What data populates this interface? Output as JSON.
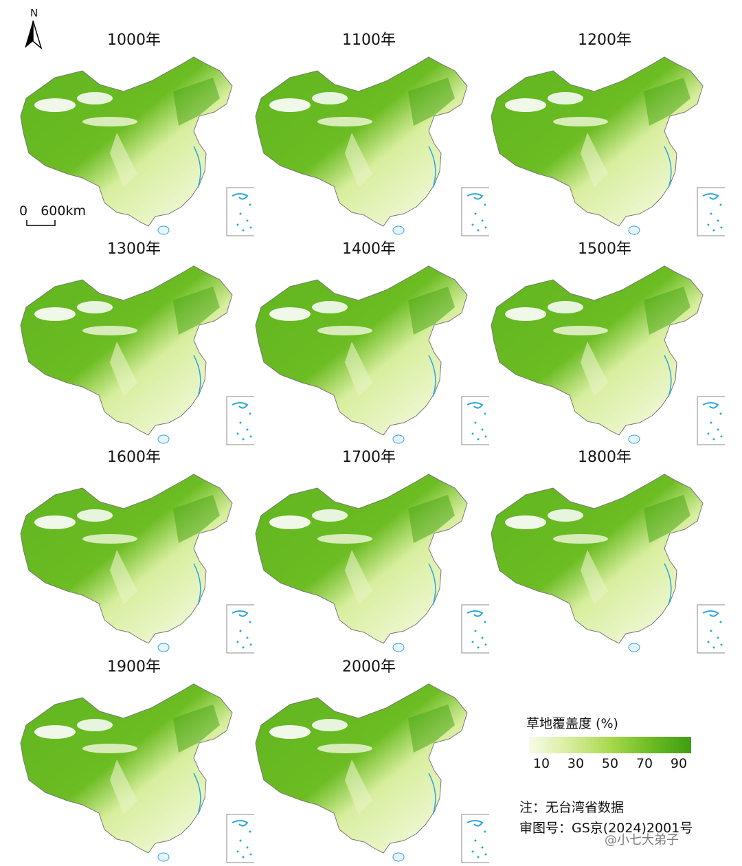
{
  "north_label": "N",
  "scale": {
    "zero": "0",
    "distance": "600km"
  },
  "panels": [
    {
      "year": "1000年"
    },
    {
      "year": "1100年"
    },
    {
      "year": "1200年"
    },
    {
      "year": "1300年"
    },
    {
      "year": "1400年"
    },
    {
      "year": "1500年"
    },
    {
      "year": "1600年"
    },
    {
      "year": "1700年"
    },
    {
      "year": "1800年"
    },
    {
      "year": "1900年"
    },
    {
      "year": "2000年"
    }
  ],
  "legend": {
    "title": "草地覆盖度 (%)",
    "ticks": [
      "10",
      "30",
      "50",
      "70",
      "90"
    ],
    "colors": [
      "#f7fbe8",
      "#d7ed9c",
      "#a8d94e",
      "#6cbc23",
      "#3f9e12"
    ]
  },
  "notes": {
    "line1": "注：无台湾省数据",
    "line2": "审图号：GS京(2024)2001号"
  },
  "watermark": "@小七大弟子"
}
